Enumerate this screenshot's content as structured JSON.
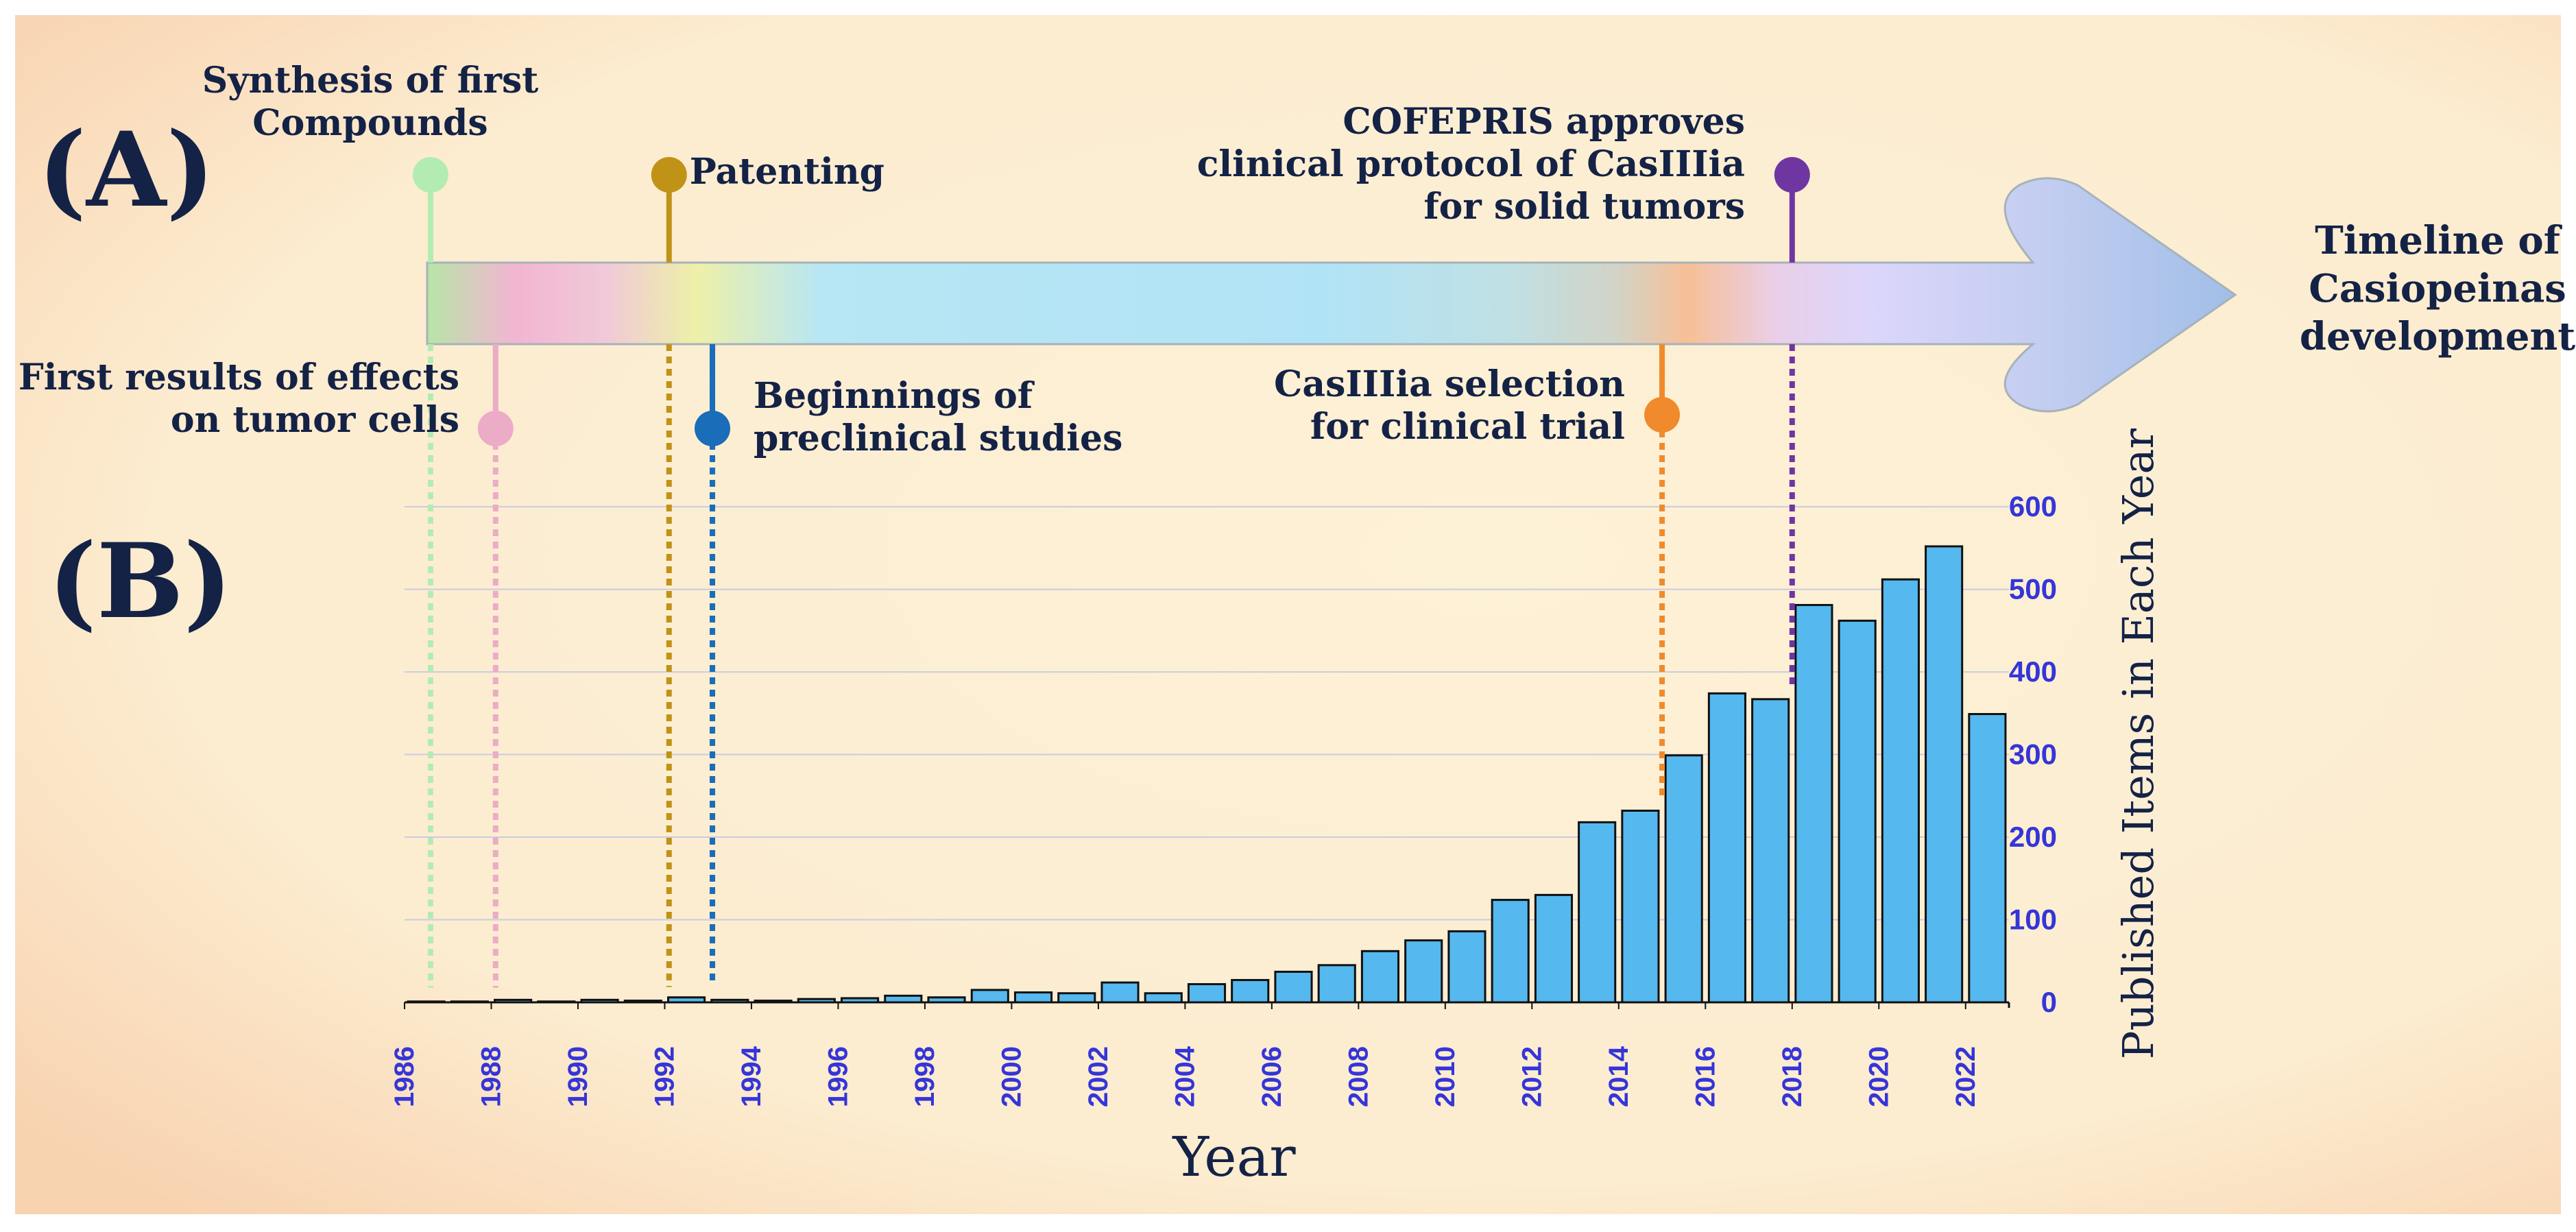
{
  "panel_a_label": "(A)",
  "panel_b_label": "(B)",
  "arrow_title": [
    "Timeline of",
    "Casiopeinas",
    "development"
  ],
  "colors": {
    "background_center": "#fdf1d6",
    "background_edge": "#f8d3b0",
    "bar_fill": "#55b8ef",
    "bar_stroke": "#111111",
    "grid": "#c9cbe0",
    "axis_num": "#3535d8",
    "text_dark": "#142246"
  },
  "events": [
    {
      "year": 1986.6,
      "position": "above",
      "lines": [
        "Synthesis of first",
        "Compounds"
      ],
      "color": "#b3ecb2",
      "line_style": "solid"
    },
    {
      "year": 1988.1,
      "position": "below",
      "lines": [
        "First results of effects",
        "on tumor cells"
      ],
      "color": "#ecabc6",
      "line_style": "solid"
    },
    {
      "year": 1992.1,
      "position": "above",
      "lines": [
        "Patenting"
      ],
      "color": "#c09317",
      "line_style": "solid"
    },
    {
      "year": 1993.1,
      "position": "below",
      "lines": [
        "Beginnings of",
        "preclinical studies"
      ],
      "color": "#1a6db8",
      "line_style": "solid"
    },
    {
      "year": 2015.0,
      "position": "below",
      "lines": [
        "CasIIIia selection",
        "for clinical trial"
      ],
      "color": "#f08a2c",
      "line_style": "solid"
    },
    {
      "year": 2018.0,
      "position": "above",
      "lines": [
        "COFEPRIS approves",
        "clinical protocol of CasIIIia",
        "for solid tumors"
      ],
      "color": "#6f36a2",
      "line_style": "solid"
    }
  ],
  "chart_data": {
    "type": "bar",
    "title": "",
    "xlabel": "Year",
    "ylabel": "Published Items in Each Year",
    "ylim": [
      0,
      620
    ],
    "yticks": [
      0,
      100,
      200,
      300,
      400,
      500,
      600
    ],
    "grid": true,
    "x_tick_labels": [
      "1986",
      "1988",
      "1990",
      "1992",
      "1994",
      "1996",
      "1998",
      "2000",
      "2002",
      "2004",
      "2006",
      "2008",
      "2010",
      "2012",
      "2014",
      "2016",
      "2018",
      "2020",
      "2022"
    ],
    "categories": [
      1987,
      1988,
      1989,
      1990,
      1991,
      1992,
      1993,
      1994,
      1995,
      1996,
      1997,
      1998,
      1999,
      2000,
      2001,
      2002,
      2003,
      2004,
      2005,
      2006,
      2007,
      2008,
      2009,
      2010,
      2011,
      2012,
      2013,
      2014,
      2015,
      2016,
      2017,
      2018,
      2019,
      2020,
      2021,
      2022,
      2023
    ],
    "values": [
      1,
      1,
      3,
      1,
      3,
      2,
      6,
      3,
      2,
      4,
      5,
      8,
      6,
      15,
      12,
      11,
      24,
      11,
      22,
      27,
      37,
      45,
      62,
      75,
      86,
      124,
      130,
      218,
      232,
      299,
      374,
      367,
      481,
      462,
      512,
      552,
      349
    ]
  }
}
